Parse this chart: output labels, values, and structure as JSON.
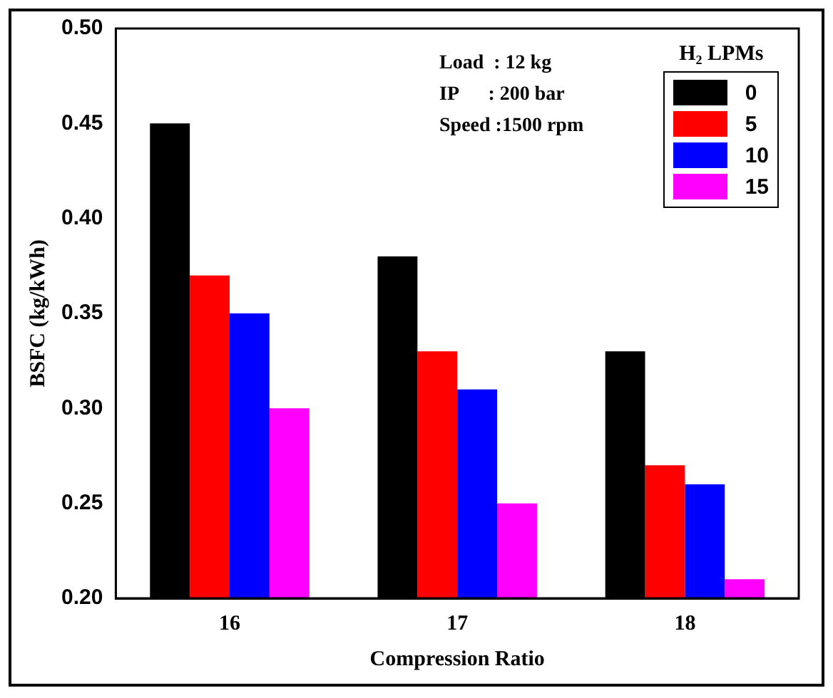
{
  "chart_data": {
    "type": "bar",
    "xlabel": "Compression Ratio",
    "ylabel": "BSFC (kg/kWh)",
    "categories": [
      "16",
      "17",
      "18"
    ],
    "series": [
      {
        "name": "0",
        "color": "#000000",
        "values": [
          0.45,
          0.38,
          0.33
        ]
      },
      {
        "name": "5",
        "color": "#ff0000",
        "values": [
          0.37,
          0.33,
          0.27
        ]
      },
      {
        "name": "10",
        "color": "#0000ff",
        "values": [
          0.35,
          0.31,
          0.26
        ]
      },
      {
        "name": "15",
        "color": "#ff00ff",
        "values": [
          0.3,
          0.25,
          0.21
        ]
      }
    ],
    "ylim": [
      0.2,
      0.5
    ],
    "yticks": [
      {
        "value": 0.2,
        "label": "0.20"
      },
      {
        "value": 0.25,
        "label": "0.25"
      },
      {
        "value": 0.3,
        "label": "0.30"
      },
      {
        "value": 0.35,
        "label": "0.35"
      },
      {
        "value": 0.4,
        "label": "0.40"
      },
      {
        "value": 0.45,
        "label": "0.45"
      },
      {
        "value": 0.5,
        "label": "0.50"
      }
    ],
    "grid": false,
    "legend": "top right",
    "legend_title": "H₂ LPMs",
    "annotations": [
      "Load  : 12 kg",
      "IP      : 200 bar",
      "Speed :1500 rpm"
    ]
  }
}
